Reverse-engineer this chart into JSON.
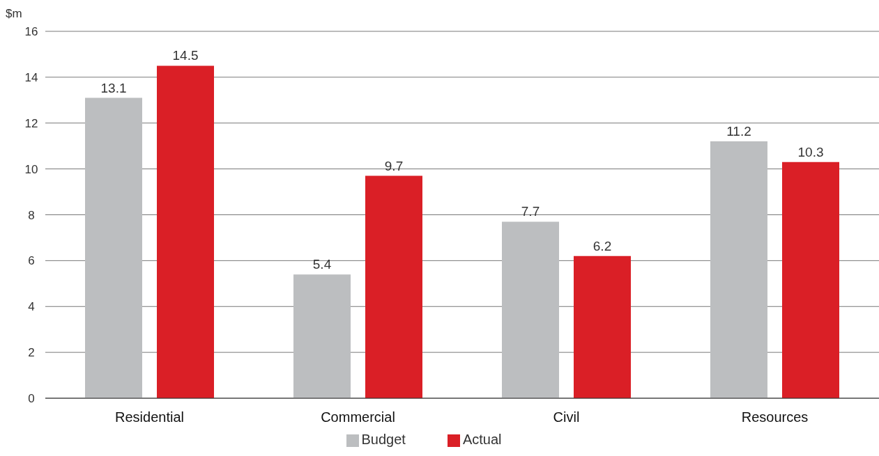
{
  "chart_data": {
    "type": "bar",
    "ylabel": "$m",
    "categories": [
      "Residential",
      "Commercial",
      "Civil",
      "Resources"
    ],
    "series": [
      {
        "name": "Budget",
        "color": "#bcbec0",
        "values": [
          13.1,
          5.4,
          7.7,
          11.2
        ]
      },
      {
        "name": "Actual",
        "color": "#da1f26",
        "values": [
          14.5,
          9.7,
          6.2,
          10.3
        ]
      }
    ],
    "ylim": [
      0,
      16
    ],
    "yticks": [
      0,
      2,
      4,
      6,
      8,
      10,
      12,
      14,
      16
    ],
    "grid": "y",
    "legend": "bottom",
    "data_labels": true
  }
}
